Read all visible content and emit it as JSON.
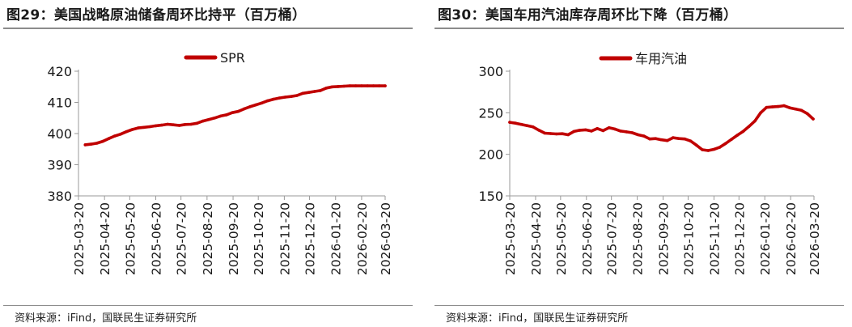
{
  "colors": {
    "series": "#c00000",
    "axis": "#9a9a9a",
    "text": "#1a1a1a"
  },
  "chart_data": [
    {
      "type": "line",
      "title": "图29：美国战略原油储备周环比持平（百万桶）",
      "source": "资料来源：iFind，国联民生证券研究所",
      "ylim": [
        380,
        420
      ],
      "yticks": [
        380,
        390,
        400,
        410,
        420
      ],
      "xlim": [
        "2025-03-20",
        "2026-03-20"
      ],
      "xticks": [
        "2025-03-20",
        "2025-04-20",
        "2025-05-20",
        "2025-06-20",
        "2025-07-20",
        "2025-08-20",
        "2025-09-20",
        "2025-10-20",
        "2025-11-20",
        "2025-12-20",
        "2026-01-20",
        "2026-02-20",
        "2026-03-20"
      ],
      "legend_position": "top-center",
      "grid": false,
      "series": [
        {
          "name": "SPR",
          "x": [
            "2025-03-28",
            "2025-04-04",
            "2025-04-11",
            "2025-04-18",
            "2025-04-25",
            "2025-05-02",
            "2025-05-09",
            "2025-05-16",
            "2025-05-23",
            "2025-05-30",
            "2025-06-06",
            "2025-06-13",
            "2025-06-20",
            "2025-06-27",
            "2025-07-04",
            "2025-07-11",
            "2025-07-18",
            "2025-07-25",
            "2025-08-01",
            "2025-08-08",
            "2025-08-15",
            "2025-08-22",
            "2025-08-29",
            "2025-09-05",
            "2025-09-12",
            "2025-09-19",
            "2025-09-26",
            "2025-10-03",
            "2025-10-10",
            "2025-10-17",
            "2025-10-24",
            "2025-10-31",
            "2025-11-07",
            "2025-11-14",
            "2025-11-21",
            "2025-11-28",
            "2025-12-05",
            "2025-12-12",
            "2025-12-19",
            "2025-12-26",
            "2026-01-02",
            "2026-01-09",
            "2026-01-16",
            "2026-01-23",
            "2026-01-30",
            "2026-02-06",
            "2026-02-13",
            "2026-02-20",
            "2026-02-27",
            "2026-03-06",
            "2026-03-13",
            "2026-03-20"
          ],
          "values": [
            396.4,
            396.6,
            396.9,
            397.5,
            398.4,
            399.2,
            399.8,
            400.6,
            401.3,
            401.8,
            402.0,
            402.2,
            402.5,
            402.7,
            403.0,
            402.8,
            402.6,
            402.9,
            403.0,
            403.3,
            404.0,
            404.5,
            405.0,
            405.6,
            406.0,
            406.7,
            407.1,
            407.9,
            408.6,
            409.2,
            409.8,
            410.5,
            411.0,
            411.4,
            411.7,
            411.9,
            412.2,
            412.9,
            413.2,
            413.5,
            413.8,
            414.6,
            415.0,
            415.1,
            415.2,
            415.3,
            415.3,
            415.3,
            415.3,
            415.3,
            415.3,
            415.3
          ]
        }
      ]
    },
    {
      "type": "line",
      "title": "图30：美国车用汽油库存周环比下降（百万桶）",
      "source": "资料来源：iFind，国联民生证券研究所",
      "ylim": [
        150,
        300
      ],
      "yticks": [
        150,
        200,
        250,
        300
      ],
      "xlim": [
        "2025-03-20",
        "2026-03-20"
      ],
      "xticks": [
        "2025-03-20",
        "2025-04-20",
        "2025-05-20",
        "2025-06-20",
        "2025-07-20",
        "2025-08-20",
        "2025-09-20",
        "2025-10-20",
        "2025-11-20",
        "2025-12-20",
        "2026-01-20",
        "2026-02-20",
        "2026-03-20"
      ],
      "legend_position": "top-center",
      "grid": false,
      "series": [
        {
          "name": "车用汽油",
          "x": [
            "2025-03-20",
            "2025-03-27",
            "2025-04-03",
            "2025-04-10",
            "2025-04-17",
            "2025-04-24",
            "2025-05-01",
            "2025-05-08",
            "2025-05-15",
            "2025-05-22",
            "2025-05-29",
            "2025-06-05",
            "2025-06-12",
            "2025-06-19",
            "2025-06-26",
            "2025-07-03",
            "2025-07-10",
            "2025-07-17",
            "2025-07-24",
            "2025-07-31",
            "2025-08-07",
            "2025-08-14",
            "2025-08-21",
            "2025-08-28",
            "2025-09-04",
            "2025-09-11",
            "2025-09-18",
            "2025-09-25",
            "2025-10-02",
            "2025-10-09",
            "2025-10-16",
            "2025-10-23",
            "2025-10-30",
            "2025-11-06",
            "2025-11-13",
            "2025-11-20",
            "2025-11-27",
            "2025-12-04",
            "2025-12-11",
            "2025-12-18",
            "2025-12-25",
            "2026-01-01",
            "2026-01-08",
            "2026-01-15",
            "2026-01-22",
            "2026-01-29",
            "2026-02-05",
            "2026-02-12",
            "2026-02-19",
            "2026-02-26",
            "2026-03-05",
            "2026-03-12",
            "2026-03-19"
          ],
          "values": [
            238.5,
            237.5,
            236.0,
            234.5,
            233.0,
            229.0,
            225.5,
            225.0,
            224.5,
            224.8,
            223.5,
            227.5,
            229.0,
            229.5,
            228.0,
            231.0,
            228.5,
            232.0,
            230.5,
            228.0,
            227.0,
            226.0,
            223.5,
            222.0,
            218.5,
            219.0,
            217.5,
            216.5,
            220.0,
            219.0,
            218.5,
            216.0,
            211.0,
            205.5,
            204.5,
            206.0,
            208.5,
            213.0,
            218.0,
            223.0,
            227.5,
            233.5,
            240.0,
            250.0,
            256.5,
            257.0,
            257.5,
            258.5,
            256.0,
            254.5,
            253.0,
            249.0,
            242.5
          ]
        }
      ]
    }
  ]
}
